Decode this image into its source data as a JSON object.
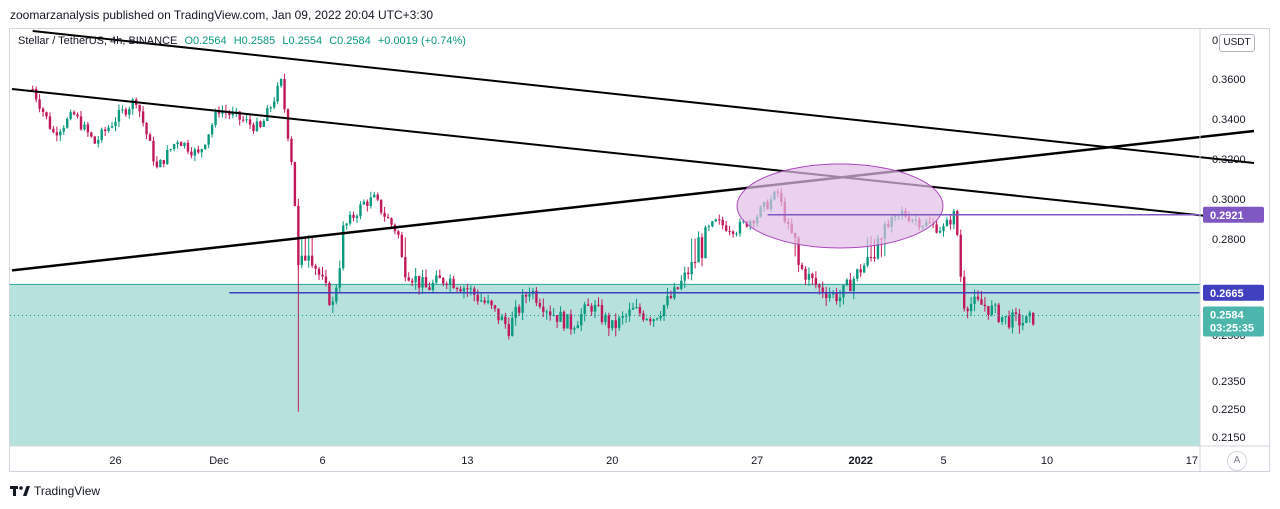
{
  "header": {
    "publish_line": "zoomarzanalysis published on TradingView.com, Jan 09, 2022 20:04 UTC+3:30"
  },
  "legend": {
    "symbol": "Stellar / TetherUS, 4h, BINANCE",
    "open": "O0.2564",
    "high": "H0.2585",
    "low": "L0.2554",
    "close": "C0.2584",
    "change": "+0.0019 (+0.74%)"
  },
  "currency_button": "USDT",
  "auto_button": "A",
  "footer": {
    "brand": "TradingView"
  },
  "colors": {
    "up": "#089981",
    "down": "#c2185b",
    "zone": "#b2dfdb",
    "level_line": "#3f3fc0",
    "tag_purple": "#7e57c2",
    "tag_blue": "#3f3fc0",
    "tag_price": "#4db6ac",
    "ellipse_fill": "#e1bee7",
    "ellipse_stroke": "#ab47bc"
  },
  "chart_data": {
    "type": "candlestick",
    "symbol": "XLMUSDT",
    "timeframe": "4h",
    "exchange": "BINANCE",
    "ylim": [
      0.2125,
      0.38
    ],
    "y_ticks": [
      "0.3600",
      "0.3400",
      "0.3200",
      "0.3000",
      "0.2800",
      "0.2350",
      "0.2250",
      "0.2150"
    ],
    "y_tick_values": [
      0.36,
      0.34,
      0.32,
      0.3,
      0.28,
      0.235,
      0.225,
      0.215
    ],
    "y_axis_top_label_partial": "0",
    "y_axis_hidden_label_partial": "0.2500",
    "x_tick_labels": [
      "26",
      "Dec",
      "6",
      "13",
      "20",
      "27",
      "2022",
      "5",
      "10",
      "17"
    ],
    "x_tick_values": [
      "2021-11-26",
      "2021-12-01",
      "2021-12-06",
      "2021-12-13",
      "2021-12-20",
      "2021-12-27",
      "2022-01-01",
      "2022-01-05",
      "2022-01-10",
      "2022-01-17"
    ],
    "price_points": [
      [
        "2021-11-22T00:00",
        0.355
      ],
      [
        "2021-11-23T00:00",
        0.333
      ],
      [
        "2021-11-24T00:00",
        0.342
      ],
      [
        "2021-11-25T00:00",
        0.328
      ],
      [
        "2021-11-26T00:00",
        0.34
      ],
      [
        "2021-11-27T00:00",
        0.35
      ],
      [
        "2021-11-28T00:00",
        0.315
      ],
      [
        "2021-11-29T00:00",
        0.33
      ],
      [
        "2021-11-30T00:00",
        0.322
      ],
      [
        "2021-12-01T00:00",
        0.345
      ],
      [
        "2021-12-02T00:00",
        0.34
      ],
      [
        "2021-12-03T00:00",
        0.335
      ],
      [
        "2021-12-04T00:00",
        0.358
      ],
      [
        "2021-12-04T12:00",
        0.32
      ],
      [
        "2021-12-04T20:00",
        0.275
      ],
      [
        "2021-12-05T08:00",
        0.282
      ],
      [
        "2021-12-06T00:00",
        0.27
      ],
      [
        "2021-12-06T12:00",
        0.262
      ],
      [
        "2021-12-07T00:00",
        0.285
      ],
      [
        "2021-12-08T00:00",
        0.298
      ],
      [
        "2021-12-08T12:00",
        0.3
      ],
      [
        "2021-12-09T00:00",
        0.292
      ],
      [
        "2021-12-09T12:00",
        0.285
      ],
      [
        "2021-12-10T00:00",
        0.275
      ],
      [
        "2021-12-11T00:00",
        0.268
      ],
      [
        "2021-12-12T00:00",
        0.272
      ],
      [
        "2021-12-13T00:00",
        0.268
      ],
      [
        "2021-12-14T00:00",
        0.262
      ],
      [
        "2021-12-15T00:00",
        0.254
      ],
      [
        "2021-12-16T00:00",
        0.268
      ],
      [
        "2021-12-17T00:00",
        0.26
      ],
      [
        "2021-12-18T00:00",
        0.255
      ],
      [
        "2021-12-19T00:00",
        0.262
      ],
      [
        "2021-12-20T00:00",
        0.254
      ],
      [
        "2021-12-21T00:00",
        0.26
      ],
      [
        "2021-12-22T00:00",
        0.258
      ],
      [
        "2021-12-23T00:00",
        0.266
      ],
      [
        "2021-12-24T00:00",
        0.278
      ],
      [
        "2021-12-25T00:00",
        0.288
      ],
      [
        "2021-12-26T00:00",
        0.285
      ],
      [
        "2021-12-27T00:00",
        0.292
      ],
      [
        "2021-12-28T00:00",
        0.303
      ],
      [
        "2021-12-28T12:00",
        0.285
      ],
      [
        "2021-12-29T00:00",
        0.276
      ],
      [
        "2021-12-30T00:00",
        0.268
      ],
      [
        "2021-12-31T00:00",
        0.265
      ],
      [
        "2022-01-01T00:00",
        0.275
      ],
      [
        "2022-01-02T00:00",
        0.283
      ],
      [
        "2022-01-03T00:00",
        0.293
      ],
      [
        "2022-01-04T00:00",
        0.288
      ],
      [
        "2022-01-05T00:00",
        0.285
      ],
      [
        "2022-01-05T12:00",
        0.292
      ],
      [
        "2022-01-06T00:00",
        0.263
      ],
      [
        "2022-01-07T00:00",
        0.262
      ],
      [
        "2022-01-08T00:00",
        0.257
      ],
      [
        "2022-01-09T00:00",
        0.256
      ],
      [
        "2022-01-09T12:00",
        0.2584
      ]
    ],
    "trendlines": [
      {
        "name": "upper descending",
        "from": [
          "2021-11-22",
          0.384
        ],
        "to": [
          "2022-01-20",
          0.318
        ]
      },
      {
        "name": "lower descending",
        "from": [
          "2021-11-21",
          0.355
        ],
        "to": [
          "2022-01-20",
          0.289
        ]
      },
      {
        "name": "ascending",
        "from": [
          "2021-11-21",
          0.2745
        ],
        "to": [
          "2022-01-20",
          0.334
        ]
      }
    ],
    "horizontal_levels": [
      {
        "value": 0.2921,
        "label": "0.2921",
        "color": "purple"
      },
      {
        "value": 0.2665,
        "label": "0.2665",
        "color": "blue"
      }
    ],
    "zone": {
      "top": 0.2695,
      "bottom": 0.2125
    },
    "ellipse_highlight": {
      "center": [
        "2021-12-31",
        0.2965
      ],
      "note": "breakout area"
    },
    "current_price": {
      "value": "0.2584",
      "countdown": "03:25:35"
    }
  }
}
